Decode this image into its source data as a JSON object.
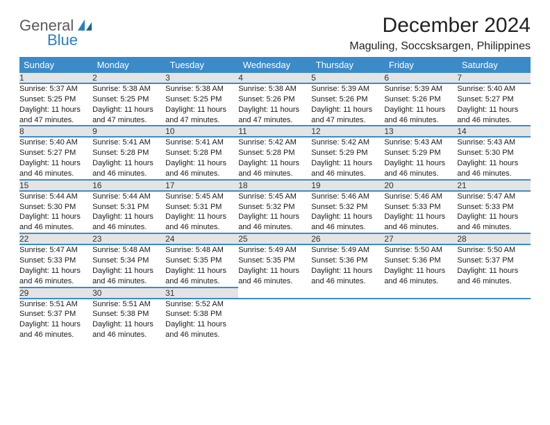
{
  "brand": {
    "word1": "General",
    "word2": "Blue"
  },
  "title": "December 2024",
  "location": "Maguling, Soccsksargen, Philippines",
  "colors": {
    "header_bg": "#3b8bc9",
    "header_text": "#ffffff",
    "daynum_bg": "#e4e4e4",
    "rule": "#2f6fa8",
    "logo_blue": "#2a7ec5",
    "logo_gray": "#5a5a5a",
    "page_bg": "#ffffff"
  },
  "weekdays": [
    "Sunday",
    "Monday",
    "Tuesday",
    "Wednesday",
    "Thursday",
    "Friday",
    "Saturday"
  ],
  "weeks": [
    [
      {
        "n": "1",
        "sr": "5:37 AM",
        "ss": "5:25 PM",
        "dl": "11 hours and 47 minutes."
      },
      {
        "n": "2",
        "sr": "5:38 AM",
        "ss": "5:25 PM",
        "dl": "11 hours and 47 minutes."
      },
      {
        "n": "3",
        "sr": "5:38 AM",
        "ss": "5:25 PM",
        "dl": "11 hours and 47 minutes."
      },
      {
        "n": "4",
        "sr": "5:38 AM",
        "ss": "5:26 PM",
        "dl": "11 hours and 47 minutes."
      },
      {
        "n": "5",
        "sr": "5:39 AM",
        "ss": "5:26 PM",
        "dl": "11 hours and 47 minutes."
      },
      {
        "n": "6",
        "sr": "5:39 AM",
        "ss": "5:26 PM",
        "dl": "11 hours and 46 minutes."
      },
      {
        "n": "7",
        "sr": "5:40 AM",
        "ss": "5:27 PM",
        "dl": "11 hours and 46 minutes."
      }
    ],
    [
      {
        "n": "8",
        "sr": "5:40 AM",
        "ss": "5:27 PM",
        "dl": "11 hours and 46 minutes."
      },
      {
        "n": "9",
        "sr": "5:41 AM",
        "ss": "5:28 PM",
        "dl": "11 hours and 46 minutes."
      },
      {
        "n": "10",
        "sr": "5:41 AM",
        "ss": "5:28 PM",
        "dl": "11 hours and 46 minutes."
      },
      {
        "n": "11",
        "sr": "5:42 AM",
        "ss": "5:28 PM",
        "dl": "11 hours and 46 minutes."
      },
      {
        "n": "12",
        "sr": "5:42 AM",
        "ss": "5:29 PM",
        "dl": "11 hours and 46 minutes."
      },
      {
        "n": "13",
        "sr": "5:43 AM",
        "ss": "5:29 PM",
        "dl": "11 hours and 46 minutes."
      },
      {
        "n": "14",
        "sr": "5:43 AM",
        "ss": "5:30 PM",
        "dl": "11 hours and 46 minutes."
      }
    ],
    [
      {
        "n": "15",
        "sr": "5:44 AM",
        "ss": "5:30 PM",
        "dl": "11 hours and 46 minutes."
      },
      {
        "n": "16",
        "sr": "5:44 AM",
        "ss": "5:31 PM",
        "dl": "11 hours and 46 minutes."
      },
      {
        "n": "17",
        "sr": "5:45 AM",
        "ss": "5:31 PM",
        "dl": "11 hours and 46 minutes."
      },
      {
        "n": "18",
        "sr": "5:45 AM",
        "ss": "5:32 PM",
        "dl": "11 hours and 46 minutes."
      },
      {
        "n": "19",
        "sr": "5:46 AM",
        "ss": "5:32 PM",
        "dl": "11 hours and 46 minutes."
      },
      {
        "n": "20",
        "sr": "5:46 AM",
        "ss": "5:33 PM",
        "dl": "11 hours and 46 minutes."
      },
      {
        "n": "21",
        "sr": "5:47 AM",
        "ss": "5:33 PM",
        "dl": "11 hours and 46 minutes."
      }
    ],
    [
      {
        "n": "22",
        "sr": "5:47 AM",
        "ss": "5:33 PM",
        "dl": "11 hours and 46 minutes."
      },
      {
        "n": "23",
        "sr": "5:48 AM",
        "ss": "5:34 PM",
        "dl": "11 hours and 46 minutes."
      },
      {
        "n": "24",
        "sr": "5:48 AM",
        "ss": "5:35 PM",
        "dl": "11 hours and 46 minutes."
      },
      {
        "n": "25",
        "sr": "5:49 AM",
        "ss": "5:35 PM",
        "dl": "11 hours and 46 minutes."
      },
      {
        "n": "26",
        "sr": "5:49 AM",
        "ss": "5:36 PM",
        "dl": "11 hours and 46 minutes."
      },
      {
        "n": "27",
        "sr": "5:50 AM",
        "ss": "5:36 PM",
        "dl": "11 hours and 46 minutes."
      },
      {
        "n": "28",
        "sr": "5:50 AM",
        "ss": "5:37 PM",
        "dl": "11 hours and 46 minutes."
      }
    ],
    [
      {
        "n": "29",
        "sr": "5:51 AM",
        "ss": "5:37 PM",
        "dl": "11 hours and 46 minutes."
      },
      {
        "n": "30",
        "sr": "5:51 AM",
        "ss": "5:38 PM",
        "dl": "11 hours and 46 minutes."
      },
      {
        "n": "31",
        "sr": "5:52 AM",
        "ss": "5:38 PM",
        "dl": "11 hours and 46 minutes."
      },
      null,
      null,
      null,
      null
    ]
  ],
  "labels": {
    "sunrise": "Sunrise:",
    "sunset": "Sunset:",
    "daylight": "Daylight:"
  },
  "typography": {
    "title_fontsize": 30,
    "location_fontsize": 16,
    "weekday_fontsize": 13,
    "daynum_fontsize": 12,
    "cell_fontsize": 11
  }
}
